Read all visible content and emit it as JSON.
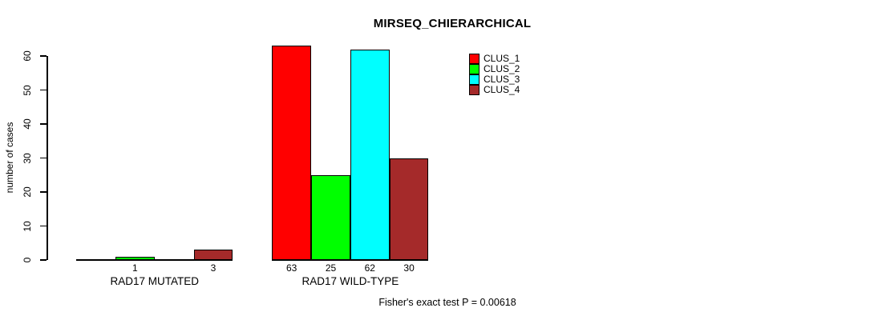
{
  "chart_data": {
    "type": "bar",
    "title": "MIRSEQ_CHIERARCHICAL",
    "ylabel": "number of cases",
    "xlabel": "",
    "ylim": [
      0,
      60
    ],
    "yticks": [
      0,
      10,
      20,
      30,
      40,
      50,
      60
    ],
    "grid": false,
    "legend_position": "top-right",
    "annotation": "Fisher's exact test P = 0.00618",
    "series": [
      {
        "name": "CLUS_1",
        "color": "#FF0000",
        "values": [
          0,
          63
        ]
      },
      {
        "name": "CLUS_2",
        "color": "#00FF00",
        "values": [
          1,
          25
        ]
      },
      {
        "name": "CLUS_3",
        "color": "#00FFFF",
        "values": [
          0,
          62
        ]
      },
      {
        "name": "CLUS_4",
        "color": "#A52A2A",
        "values": [
          3,
          30
        ]
      }
    ],
    "groups": [
      {
        "label": "RAD17 MUTATED",
        "values": [
          0,
          1,
          0,
          3
        ],
        "value_labels": [
          "",
          "1",
          "",
          "3"
        ]
      },
      {
        "label": "RAD17 WILD-TYPE",
        "values": [
          63,
          25,
          62,
          30
        ],
        "value_labels": [
          "63",
          "25",
          "62",
          "30"
        ]
      }
    ]
  },
  "colors": {
    "background": "#FFFFFF",
    "axis": "#000000",
    "text": "#000000",
    "bar_border": "#000000"
  }
}
